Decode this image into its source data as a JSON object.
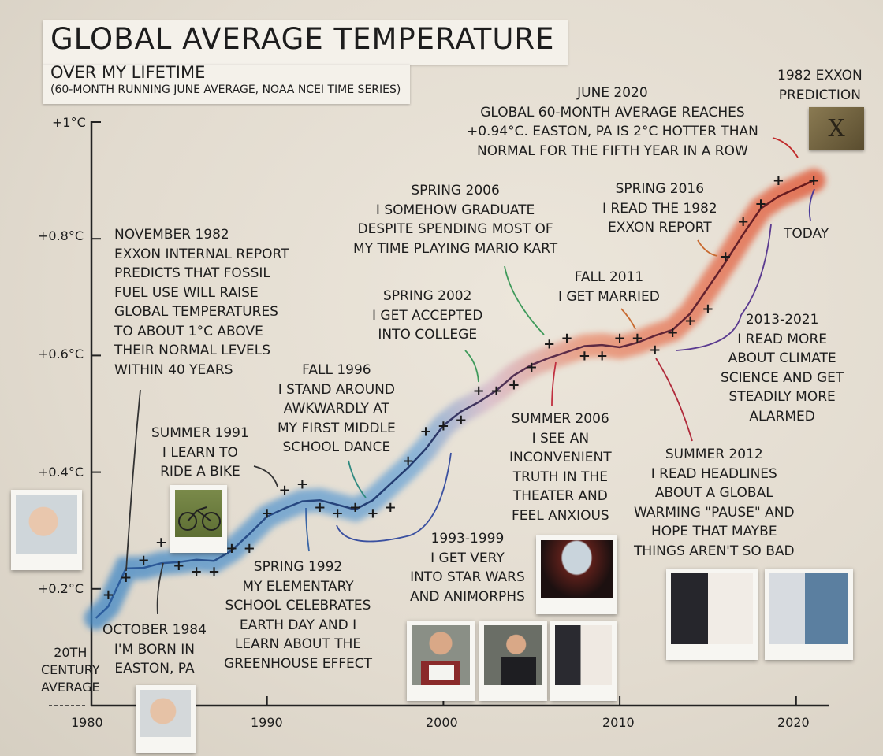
{
  "header": {
    "title": "GLOBAL AVERAGE TEMPERATURE",
    "subtitle": "OVER MY LIFETIME",
    "note": "(60-MONTH RUNNING JUNE AVERAGE, NOAA NCEI TIME SERIES)"
  },
  "chart_data": {
    "type": "line",
    "title": "GLOBAL AVERAGE TEMPERATURE",
    "subtitle": "OVER MY LIFETIME",
    "xlabel": "",
    "ylabel": "",
    "xlim": [
      1980,
      2022
    ],
    "ylim": [
      0,
      1.0
    ],
    "x_ticks": [
      "1980",
      "1990",
      "2000",
      "2010",
      "2020"
    ],
    "y_ticks": [
      "+1°C",
      "+0.8°C",
      "+0.6°C",
      "+0.4°C",
      "+0.2°C"
    ],
    "baseline_label": [
      "20TH",
      "CENTURY",
      "AVERAGE"
    ],
    "grid": false,
    "colors": {
      "early": "#3f86c4",
      "late": "#e0502e",
      "line_early": "#233a6e",
      "line_late": "#6a1a1a"
    },
    "points": [
      [
        1981,
        0.19
      ],
      [
        1982,
        0.22
      ],
      [
        1983,
        0.25
      ],
      [
        1984,
        0.28
      ],
      [
        1985,
        0.24
      ],
      [
        1986,
        0.23
      ],
      [
        1987,
        0.23
      ],
      [
        1988,
        0.27
      ],
      [
        1989,
        0.27
      ],
      [
        1990,
        0.33
      ],
      [
        1991,
        0.37
      ],
      [
        1992,
        0.38
      ],
      [
        1993,
        0.34
      ],
      [
        1994,
        0.33
      ],
      [
        1995,
        0.34
      ],
      [
        1996,
        0.33
      ],
      [
        1997,
        0.34
      ],
      [
        1998,
        0.42
      ],
      [
        1999,
        0.47
      ],
      [
        2000,
        0.48
      ],
      [
        2001,
        0.49
      ],
      [
        2002,
        0.54
      ],
      [
        2003,
        0.54
      ],
      [
        2004,
        0.55
      ],
      [
        2005,
        0.58
      ],
      [
        2006,
        0.62
      ],
      [
        2007,
        0.63
      ],
      [
        2008,
        0.6
      ],
      [
        2009,
        0.6
      ],
      [
        2010,
        0.63
      ],
      [
        2011,
        0.63
      ],
      [
        2012,
        0.61
      ],
      [
        2013,
        0.64
      ],
      [
        2014,
        0.66
      ],
      [
        2015,
        0.68
      ],
      [
        2016,
        0.77
      ],
      [
        2017,
        0.83
      ],
      [
        2018,
        0.86
      ],
      [
        2019,
        0.9
      ],
      [
        2021,
        0.9
      ]
    ]
  },
  "annotations": {
    "nov1982": {
      "head": "NOVEMBER 1982",
      "lines": [
        "EXXON INTERNAL REPORT",
        "PREDICTS THAT FOSSIL",
        "FUEL USE WILL RAISE",
        "GLOBAL TEMPERATURES",
        "TO ABOUT 1°C ABOVE",
        "THEIR NORMAL LEVELS",
        "WITHIN 40 YEARS"
      ]
    },
    "oct1984": {
      "head": "OCTOBER 1984",
      "lines": [
        "I'M BORN IN",
        "EASTON, PA"
      ]
    },
    "sum1991": {
      "head": "SUMMER 1991",
      "lines": [
        "I LEARN TO",
        "RIDE A BIKE"
      ]
    },
    "spr1992": {
      "head": "SPRING 1992",
      "lines": [
        "MY ELEMENTARY",
        "SCHOOL CELEBRATES",
        "EARTH DAY AND I",
        "LEARN ABOUT THE",
        "GREENHOUSE EFFECT"
      ]
    },
    "fall1996": {
      "head": "FALL 1996",
      "lines": [
        "I STAND AROUND",
        "AWKWARDLY AT",
        "MY FIRST MIDDLE",
        "SCHOOL DANCE"
      ]
    },
    "y1993": {
      "head": "1993-1999",
      "lines": [
        "I GET VERY",
        "INTO STAR WARS",
        "AND ANIMORPHS"
      ]
    },
    "spr2002": {
      "head": "SPRING 2002",
      "lines": [
        "I GET ACCEPTED",
        "INTO COLLEGE"
      ]
    },
    "spr2006": {
      "head": "SPRING 2006",
      "lines": [
        "I SOMEHOW GRADUATE",
        "DESPITE SPENDING MOST OF",
        "MY TIME PLAYING MARIO KART"
      ]
    },
    "sum2006": {
      "head": "SUMMER 2006",
      "lines": [
        "I SEE AN",
        "INCONVENIENT",
        "TRUTH IN THE",
        "THEATER AND",
        "FEEL ANXIOUS"
      ]
    },
    "fall2011": {
      "head": "FALL 2011",
      "lines": [
        "I GET MARRIED"
      ]
    },
    "sum2012": {
      "head": "SUMMER 2012",
      "lines": [
        "I READ HEADLINES",
        "ABOUT A GLOBAL",
        "WARMING \"PAUSE\" AND",
        "HOPE THAT MAYBE",
        "THINGS AREN'T SO BAD"
      ]
    },
    "y2013": {
      "head": "2013-2021",
      "lines": [
        "I READ MORE",
        "ABOUT CLIMATE",
        "SCIENCE AND GET",
        "STEADILY MORE",
        "ALARMED"
      ]
    },
    "spr2016": {
      "head": "SPRING 2016",
      "lines": [
        "I READ THE 1982",
        "EXXON REPORT"
      ]
    },
    "jun2020": {
      "head": "JUNE 2020",
      "lines": [
        "GLOBAL 60-MONTH AVERAGE REACHES",
        "+0.94°C. EASTON, PA IS 2°C HOTTER THAN",
        "NORMAL FOR THE FIFTH YEAR IN A ROW"
      ]
    },
    "today": {
      "head": "TODAY",
      "lines": []
    },
    "exxon": {
      "head": "1982 EXXON",
      "lines": [
        "PREDICTION"
      ],
      "marker": "X"
    }
  },
  "photos": [
    "baby-photo",
    "newborn-photo",
    "bicycle-photo",
    "movie-theater-photo",
    "college-acceptance-photo",
    "graduation-photo",
    "wedding-photo-1",
    "wedding-photo-2",
    "reading-report-photo"
  ]
}
